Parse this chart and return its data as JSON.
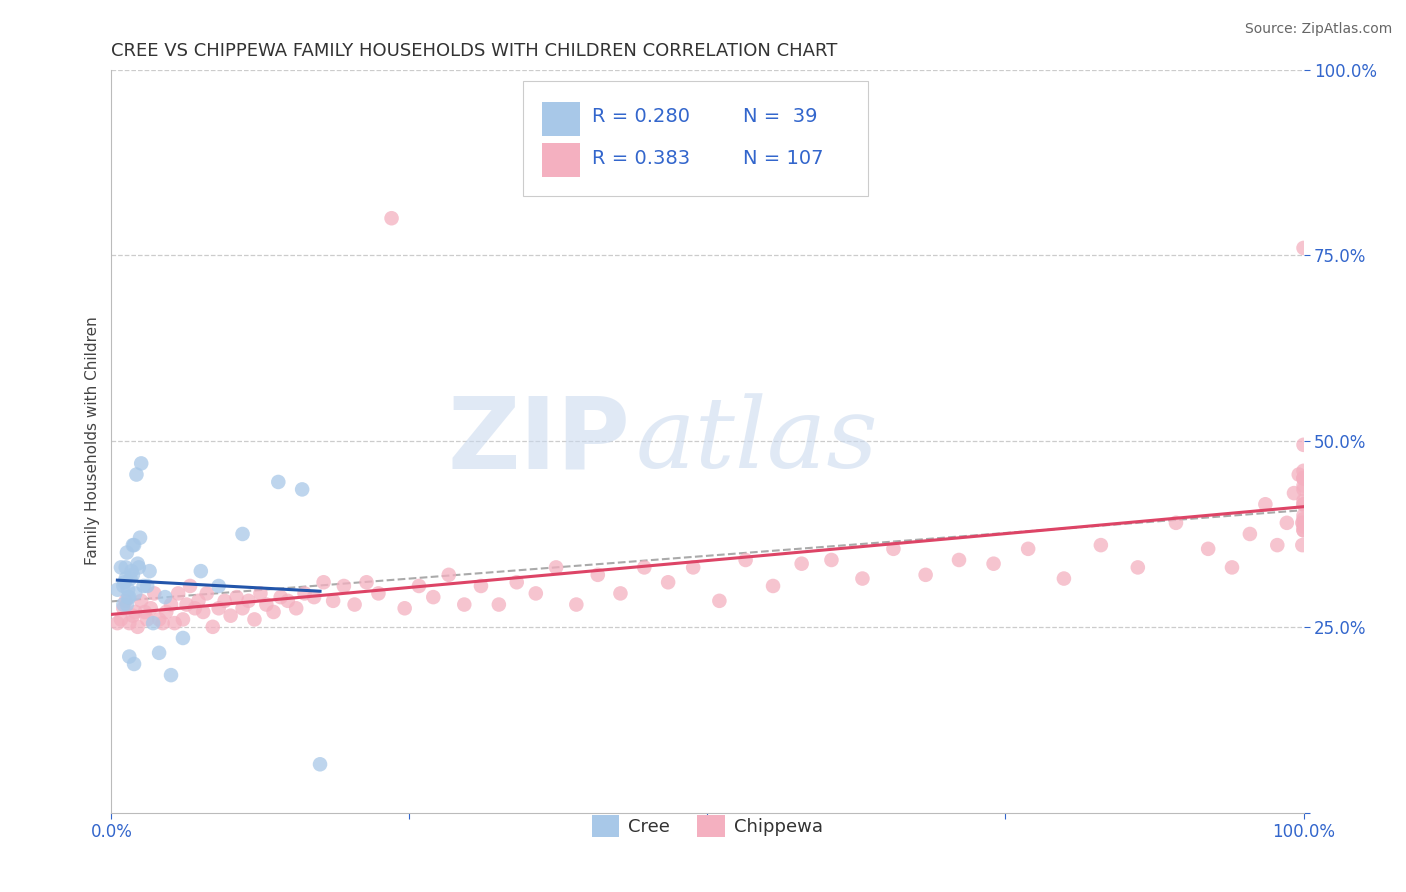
{
  "title": "CREE VS CHIPPEWA FAMILY HOUSEHOLDS WITH CHILDREN CORRELATION CHART",
  "source": "Source: ZipAtlas.com",
  "ylabel": "Family Households with Children",
  "xlim": [
    0,
    1
  ],
  "ylim": [
    0,
    1
  ],
  "cree_color": "#a8c8e8",
  "chippewa_color": "#f4b0c0",
  "cree_line_color": "#2255aa",
  "chippewa_line_color": "#dd4466",
  "watermark_zip": "ZIP",
  "watermark_atlas": "atlas",
  "legend_r_cree": "R = 0.280",
  "legend_n_cree": "N =  39",
  "legend_r_chippewa": "R = 0.383",
  "legend_n_chippewa": "N = 107",
  "cree_R": 0.28,
  "chippewa_R": 0.383,
  "cree_x": [
    0.005,
    0.008,
    0.01,
    0.01,
    0.011,
    0.012,
    0.012,
    0.013,
    0.013,
    0.014,
    0.014,
    0.015,
    0.015,
    0.016,
    0.017,
    0.018,
    0.018,
    0.019,
    0.019,
    0.02,
    0.021,
    0.022,
    0.023,
    0.024,
    0.025,
    0.027,
    0.03,
    0.032,
    0.035,
    0.04,
    0.045,
    0.05,
    0.06,
    0.075,
    0.09,
    0.11,
    0.14,
    0.16,
    0.175
  ],
  "cree_y": [
    0.3,
    0.33,
    0.28,
    0.305,
    0.31,
    0.315,
    0.33,
    0.35,
    0.28,
    0.29,
    0.3,
    0.21,
    0.29,
    0.315,
    0.325,
    0.36,
    0.32,
    0.2,
    0.36,
    0.295,
    0.455,
    0.335,
    0.33,
    0.37,
    0.47,
    0.305,
    0.305,
    0.325,
    0.255,
    0.215,
    0.29,
    0.185,
    0.235,
    0.325,
    0.305,
    0.375,
    0.445,
    0.435,
    0.065
  ],
  "chippewa_x": [
    0.005,
    0.008,
    0.01,
    0.012,
    0.015,
    0.018,
    0.02,
    0.022,
    0.025,
    0.028,
    0.03,
    0.033,
    0.036,
    0.04,
    0.043,
    0.046,
    0.05,
    0.053,
    0.056,
    0.06,
    0.063,
    0.066,
    0.07,
    0.073,
    0.077,
    0.08,
    0.085,
    0.09,
    0.095,
    0.1,
    0.105,
    0.11,
    0.115,
    0.12,
    0.125,
    0.13,
    0.136,
    0.142,
    0.148,
    0.155,
    0.162,
    0.17,
    0.178,
    0.186,
    0.195,
    0.204,
    0.214,
    0.224,
    0.235,
    0.246,
    0.258,
    0.27,
    0.283,
    0.296,
    0.31,
    0.325,
    0.34,
    0.356,
    0.373,
    0.39,
    0.408,
    0.427,
    0.447,
    0.467,
    0.488,
    0.51,
    0.532,
    0.555,
    0.579,
    0.604,
    0.63,
    0.656,
    0.683,
    0.711,
    0.74,
    0.769,
    0.799,
    0.83,
    0.861,
    0.893,
    0.92,
    0.94,
    0.955,
    0.968,
    0.978,
    0.986,
    0.992,
    0.996,
    0.999,
    0.999,
    1.0,
    1.0,
    1.0,
    1.0,
    1.0,
    1.0,
    1.0,
    1.0,
    1.0,
    1.0,
    1.0,
    1.0,
    1.0,
    1.0,
    1.0,
    1.0,
    1.0
  ],
  "chippewa_y": [
    0.255,
    0.26,
    0.275,
    0.285,
    0.255,
    0.265,
    0.27,
    0.25,
    0.285,
    0.27,
    0.26,
    0.275,
    0.295,
    0.26,
    0.255,
    0.27,
    0.28,
    0.255,
    0.295,
    0.26,
    0.28,
    0.305,
    0.275,
    0.285,
    0.27,
    0.295,
    0.25,
    0.275,
    0.285,
    0.265,
    0.29,
    0.275,
    0.285,
    0.26,
    0.295,
    0.28,
    0.27,
    0.29,
    0.285,
    0.275,
    0.295,
    0.29,
    0.31,
    0.285,
    0.305,
    0.28,
    0.31,
    0.295,
    0.8,
    0.275,
    0.305,
    0.29,
    0.32,
    0.28,
    0.305,
    0.28,
    0.31,
    0.295,
    0.33,
    0.28,
    0.32,
    0.295,
    0.33,
    0.31,
    0.33,
    0.285,
    0.34,
    0.305,
    0.335,
    0.34,
    0.315,
    0.355,
    0.32,
    0.34,
    0.335,
    0.355,
    0.315,
    0.36,
    0.33,
    0.39,
    0.355,
    0.33,
    0.375,
    0.415,
    0.36,
    0.39,
    0.43,
    0.455,
    0.39,
    0.36,
    0.45,
    0.415,
    0.395,
    0.45,
    0.385,
    0.495,
    0.38,
    0.38,
    0.4,
    0.415,
    0.44,
    0.46,
    0.435,
    0.45,
    0.76,
    0.39,
    0.42
  ],
  "title_fontsize": 13,
  "source_fontsize": 10,
  "tick_fontsize": 12,
  "ylabel_fontsize": 11
}
